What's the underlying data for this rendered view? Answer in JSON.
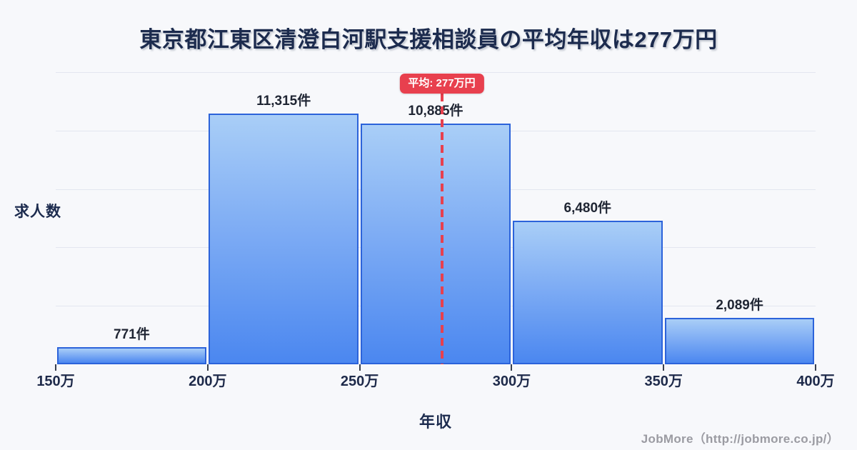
{
  "title": "東京都江東区清澄白河駅支援相談員の平均年収は277万円",
  "chart_data": {
    "type": "bar",
    "subtype": "histogram",
    "bin_edges": [
      150,
      200,
      250,
      300,
      350,
      400
    ],
    "bin_edge_labels": [
      "150万",
      "200万",
      "250万",
      "300万",
      "350万",
      "400万"
    ],
    "values": [
      771,
      11315,
      10885,
      6480,
      2089
    ],
    "value_labels": [
      "771件",
      "11,315件",
      "10,885件",
      "6,480件",
      "2,089件"
    ],
    "xlabel": "年収",
    "ylabel": "求人数",
    "xlim": [
      150,
      400
    ],
    "ylim": [
      0,
      13200
    ],
    "gridlines": 5,
    "grid": "horizontal",
    "legend": "none",
    "average_marker": {
      "value": 277,
      "label": "平均: 277万円",
      "style": "dashed-vertical-line"
    },
    "colors": {
      "bar_fill_top": "#a9cef7",
      "bar_fill_bottom": "#4b87f0",
      "bar_border": "#2c63da",
      "average_accent": "#e8404e",
      "title_text": "#1c2b4e",
      "gridline": "#e3e6f0",
      "background": "#f7f8fb"
    }
  },
  "footer": {
    "credit": "JobMore（http://jobmore.co.jp/）"
  }
}
